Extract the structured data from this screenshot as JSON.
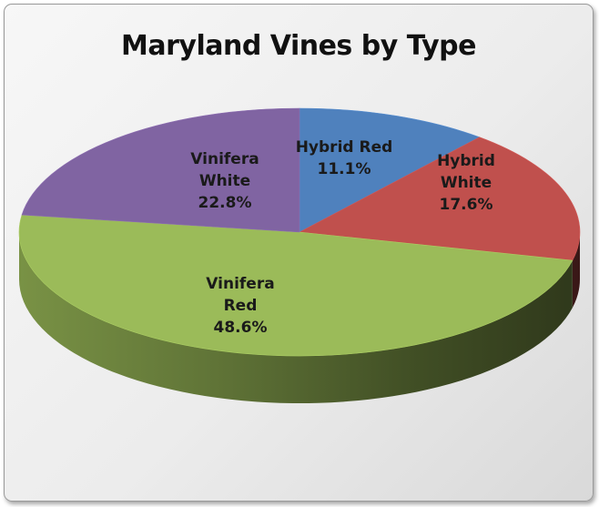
{
  "chart_data": {
    "type": "pie",
    "title": "Maryland Vines by Type",
    "slices": [
      {
        "name": "Hybrid Red",
        "label_lines": [
          "Hybrid Red"
        ],
        "value": 11.1,
        "display": "11.1%",
        "color": "#4f81bd"
      },
      {
        "name": "Hybrid White",
        "label_lines": [
          "Hybrid",
          "White"
        ],
        "value": 17.6,
        "display": "17.6%",
        "color": "#c0504d"
      },
      {
        "name": "Vinifera Red",
        "label_lines": [
          "Vinifera",
          "Red"
        ],
        "value": 48.6,
        "display": "48.6%",
        "color": "#9bbb59"
      },
      {
        "name": "Vinifera White",
        "label_lines": [
          "Vinifera",
          "White"
        ],
        "value": 22.8,
        "display": "22.8%",
        "color": "#8064a2"
      }
    ],
    "style": "3d-pie",
    "start": "top, clockwise"
  }
}
